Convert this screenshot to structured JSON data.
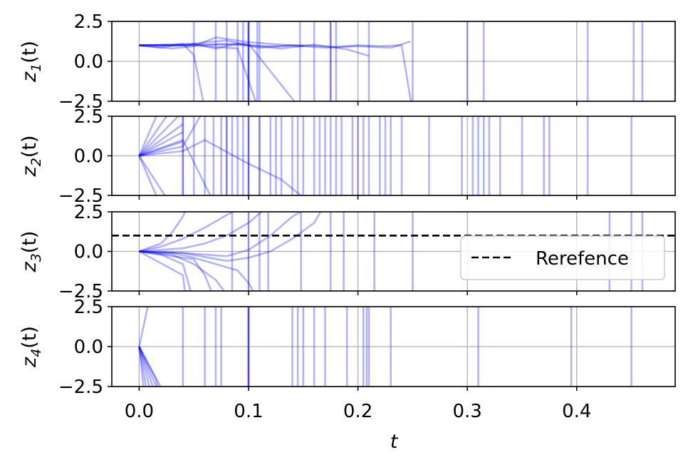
{
  "chart_data": {
    "type": "line",
    "xlabel": "t",
    "xlim": [
      -0.025,
      0.49
    ],
    "xticks": [
      0.0,
      0.1,
      0.2,
      0.3,
      0.4
    ],
    "xtick_labels": [
      "0.0",
      "0.1",
      "0.2",
      "0.3",
      "0.4"
    ],
    "grid": true,
    "trajectory_color": "#0000ff",
    "reference_color": "#000000",
    "panels": [
      {
        "ylabel": "z1(t)",
        "ylabel_base": "z",
        "ylabel_sub": "1",
        "ylabel_tail": "(t)",
        "ylim": [
          -2.5,
          2.5
        ],
        "yticks": [
          2.5,
          0.0,
          -2.5
        ],
        "ytick_labels": [
          "2.5",
          "0.0",
          "−2.5"
        ],
        "series": [
          {
            "x": [
              0,
              0.04,
              0.08,
              0.1,
              0.12,
              0.15,
              0.18,
              0.2,
              0.22,
              0.24,
              0.25
            ],
            "y": [
              1.0,
              1.0,
              1.05,
              1.0,
              0.95,
              1.0,
              0.9,
              1.0,
              0.95,
              1.0,
              -3.2
            ]
          },
          {
            "x": [
              0,
              0.03,
              0.05,
              0.07,
              0.09,
              0.11,
              0.14,
              0.17,
              0.2,
              0.23,
              0.248
            ],
            "y": [
              1.0,
              1.05,
              1.1,
              0.8,
              1.1,
              0.85,
              1.0,
              0.85,
              0.95,
              0.85,
              1.25
            ]
          },
          {
            "x": [
              0,
              0.04,
              0.06,
              0.08,
              0.1,
              0.13,
              0.16,
              0.19,
              0.21
            ],
            "y": [
              1.0,
              1.0,
              1.2,
              1.3,
              1.0,
              0.8,
              1.05,
              0.75,
              0.35
            ]
          },
          {
            "x": [
              0,
              0.02,
              0.04,
              0.05,
              0.06
            ],
            "y": [
              1.0,
              0.85,
              1.1,
              0.4,
              -3.0
            ]
          },
          {
            "x": [
              0,
              0.03,
              0.05,
              0.07,
              0.1,
              0.12,
              0.15
            ],
            "y": [
              1.0,
              0.8,
              0.95,
              1.5,
              1.2,
              1.1,
              0.95
            ]
          },
          {
            "x": [
              0,
              0.04,
              0.1,
              0.15
            ],
            "y": [
              1.0,
              1.05,
              1.1,
              -3.2
            ]
          },
          {
            "x": [
              0,
              0.05,
              0.09,
              0.11
            ],
            "y": [
              1.0,
              1.0,
              0.8,
              -3.2
            ]
          }
        ],
        "verticals": [
          0.05,
          0.07,
          0.08,
          0.09,
          0.095,
          0.1,
          0.1,
          0.1,
          0.108,
          0.11,
          0.147,
          0.16,
          0.175,
          0.175,
          0.18,
          0.21,
          0.25,
          0.3,
          0.315,
          0.41,
          0.452,
          0.46,
          0.49
        ]
      },
      {
        "ylabel": "z2(t)",
        "ylabel_base": "z",
        "ylabel_sub": "2",
        "ylabel_tail": "(t)",
        "ylim": [
          -2.5,
          2.5
        ],
        "yticks": [
          2.5,
          0.0,
          -2.5
        ],
        "ytick_labels": [
          "2.5",
          "0.0",
          "−2.5"
        ],
        "series": [
          {
            "x": [
              0,
              0.02
            ],
            "y": [
              0,
              3.2
            ]
          },
          {
            "x": [
              0,
              0.03
            ],
            "y": [
              0,
              3.0
            ]
          },
          {
            "x": [
              0,
              0.04
            ],
            "y": [
              0,
              2.8
            ]
          },
          {
            "x": [
              0,
              0.04
            ],
            "y": [
              0,
              2.0
            ]
          },
          {
            "x": [
              0,
              0.04
            ],
            "y": [
              0,
              1.5
            ]
          },
          {
            "x": [
              0,
              0.04
            ],
            "y": [
              0,
              0.9
            ]
          },
          {
            "x": [
              0,
              0.04,
              0.06
            ],
            "y": [
              0,
              0.6,
              3.0
            ]
          },
          {
            "x": [
              0,
              0.04,
              0.07
            ],
            "y": [
              0,
              1.0,
              -3.2
            ]
          },
          {
            "x": [
              0,
              0.02
            ],
            "y": [
              0,
              -3.2
            ]
          },
          {
            "x": [
              0,
              0.03
            ],
            "y": [
              0,
              -3.2
            ]
          },
          {
            "x": [
              0,
              0.04,
              0.06,
              0.1,
              0.13,
              0.16
            ],
            "y": [
              0,
              0.3,
              1.0,
              -0.5,
              -1.5,
              -3.2
            ]
          }
        ],
        "verticals": [
          0.04,
          0.04,
          0.05,
          0.06,
          0.068,
          0.075,
          0.08,
          0.08,
          0.085,
          0.09,
          0.095,
          0.1,
          0.1,
          0.11,
          0.11,
          0.12,
          0.125,
          0.13,
          0.14,
          0.145,
          0.15,
          0.16,
          0.165,
          0.17,
          0.175,
          0.18,
          0.185,
          0.195,
          0.2,
          0.205,
          0.21,
          0.22,
          0.225,
          0.23,
          0.24,
          0.265,
          0.295,
          0.305,
          0.31,
          0.315,
          0.32,
          0.33,
          0.35,
          0.37,
          0.375,
          0.41,
          0.45
        ]
      },
      {
        "ylabel": "z3(t)",
        "ylabel_base": "z",
        "ylabel_sub": "3",
        "ylabel_tail": "(t)",
        "ylim": [
          -2.5,
          2.5
        ],
        "yticks": [
          2.5,
          0.0,
          -2.5
        ],
        "ytick_labels": [
          "2.5",
          "0.0",
          "−2.5"
        ],
        "reference": {
          "label": "Rerefence",
          "y": 1.0
        },
        "legend_position": "center-right",
        "series": [
          {
            "x": [
              0,
              0.02,
              0.03,
              0.04,
              0.045
            ],
            "y": [
              0,
              0.5,
              1.2,
              2.2,
              3.0
            ]
          },
          {
            "x": [
              0,
              0.02,
              0.04,
              0.06,
              0.08,
              0.1
            ],
            "y": [
              0,
              0.3,
              0.8,
              1.5,
              2.3,
              3.0
            ]
          },
          {
            "x": [
              0,
              0.02,
              0.04,
              0.06,
              0.08,
              0.1,
              0.12
            ],
            "y": [
              0,
              0.1,
              0.2,
              0.5,
              1.0,
              1.8,
              3.0
            ]
          },
          {
            "x": [
              0,
              0.04,
              0.08,
              0.1,
              0.12,
              0.14,
              0.16
            ],
            "y": [
              0,
              -0.1,
              -0.3,
              0.1,
              1.0,
              2.2,
              3.0
            ]
          },
          {
            "x": [
              0,
              0.04,
              0.08,
              0.1,
              0.12,
              0.14,
              0.16,
              0.17
            ],
            "y": [
              0,
              -0.1,
              -0.6,
              -0.4,
              0.0,
              0.8,
              1.8,
              3.0
            ]
          },
          {
            "x": [
              0,
              0.03,
              0.05,
              0.07,
              0.09,
              0.1,
              0.11
            ],
            "y": [
              0,
              -0.1,
              -0.4,
              -0.8,
              -1.2,
              -2.0,
              -3.2
            ]
          },
          {
            "x": [
              0,
              0.03,
              0.05,
              0.07,
              0.085
            ],
            "y": [
              0,
              -0.2,
              -0.8,
              -1.8,
              -3.2
            ]
          },
          {
            "x": [
              0,
              0.02,
              0.04,
              0.05
            ],
            "y": [
              0,
              -0.2,
              -0.8,
              -3.2
            ]
          },
          {
            "x": [
              0,
              0.04,
              0.043
            ],
            "y": [
              0,
              -1.5,
              -3.2
            ]
          },
          {
            "x": [
              0,
              0.05,
              0.06,
              0.07
            ],
            "y": [
              0,
              -0.5,
              -1.5,
              -3.2
            ]
          }
        ],
        "verticals": [
          0.085,
          0.1,
          0.11,
          0.118,
          0.148,
          0.175,
          0.187,
          0.215,
          0.25,
          0.43,
          0.45,
          0.46
        ]
      },
      {
        "ylabel": "z4(t)",
        "ylabel_base": "z",
        "ylabel_sub": "4",
        "ylabel_tail": "(t)",
        "ylim": [
          -2.5,
          2.5
        ],
        "yticks": [
          2.5,
          0.0,
          -2.5
        ],
        "ytick_labels": [
          "2.5",
          "0.0",
          "−2.5"
        ],
        "series": [
          {
            "x": [
              0,
              0.01
            ],
            "y": [
              0,
              3.2
            ]
          },
          {
            "x": [
              0,
              0.005
            ],
            "y": [
              0,
              -3.2
            ]
          },
          {
            "x": [
              0,
              0.008
            ],
            "y": [
              0,
              -3.2
            ]
          },
          {
            "x": [
              0,
              0.012
            ],
            "y": [
              0,
              -3.2
            ]
          },
          {
            "x": [
              0,
              0.016
            ],
            "y": [
              0,
              -3.2
            ]
          },
          {
            "x": [
              0,
              0.02
            ],
            "y": [
              0,
              -3.2
            ]
          },
          {
            "x": [
              0,
              0.025
            ],
            "y": [
              0,
              -3.2
            ]
          },
          {
            "x": [
              0,
              0.015,
              0.02
            ],
            "y": [
              0,
              -2.0,
              -3.2
            ]
          }
        ],
        "verticals": [
          0.04,
          0.06,
          0.07,
          0.075,
          0.1,
          0.1,
          0.1,
          0.14,
          0.145,
          0.15,
          0.16,
          0.17,
          0.19,
          0.205,
          0.208,
          0.21,
          0.23,
          0.31,
          0.395,
          0.45
        ]
      }
    ]
  }
}
